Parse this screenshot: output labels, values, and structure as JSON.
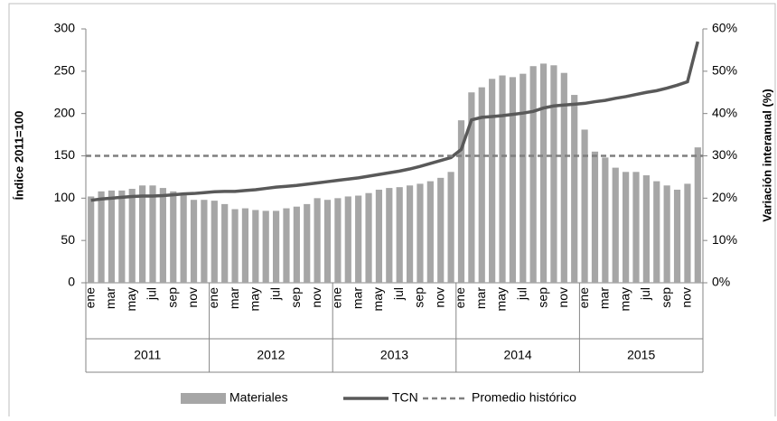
{
  "chart_data": {
    "type": "bar-line",
    "y_label": "Índice 2011=100",
    "y2_label": "Variación interanual (%)",
    "categories": [
      "ene",
      null,
      "mar",
      null,
      "may",
      null,
      "jul",
      null,
      "sep",
      null,
      "nov",
      null,
      "ene",
      null,
      "mar",
      null,
      "may",
      null,
      "jul",
      null,
      "sep",
      null,
      "nov",
      null,
      "ene",
      null,
      "mar",
      null,
      "may",
      null,
      "jul",
      null,
      "sep",
      null,
      "nov",
      null,
      "ene",
      null,
      "mar",
      null,
      "may",
      null,
      "jul",
      null,
      "sep",
      null,
      "nov",
      null,
      "ene",
      null,
      "mar",
      null,
      "may",
      null,
      "jul",
      null,
      "sep",
      null,
      "nov",
      null
    ],
    "years": [
      "2011",
      "2012",
      "2013",
      "2014",
      "2015"
    ],
    "ylim": [
      0,
      300
    ],
    "yticks": [
      0,
      50,
      100,
      150,
      200,
      250,
      300
    ],
    "y2lim": [
      0,
      60
    ],
    "y2ticks": [
      {
        "value": 0,
        "label": "0%"
      },
      {
        "value": 10,
        "label": "10%"
      },
      {
        "value": 20,
        "label": "20%"
      },
      {
        "value": 30,
        "label": "30%"
      },
      {
        "value": 40,
        "label": "40%"
      },
      {
        "value": 50,
        "label": "50%"
      },
      {
        "value": 60,
        "label": "60%"
      }
    ],
    "series": [
      {
        "name": "Materiales",
        "kind": "bar",
        "color": "#a6a6a6",
        "values": [
          102,
          108,
          109,
          109,
          111,
          115,
          115,
          112,
          108,
          105,
          98,
          98,
          97,
          93,
          87,
          88,
          86,
          85,
          85,
          88,
          90,
          93,
          100,
          98,
          100,
          102,
          103,
          106,
          110,
          112,
          113,
          115,
          117,
          120,
          124,
          131,
          192,
          225,
          231,
          241,
          245,
          243,
          247,
          256,
          259,
          257,
          248,
          222,
          181,
          155,
          148,
          136,
          131,
          131,
          127,
          120,
          115,
          110,
          117,
          160
        ]
      },
      {
        "name": "TCN",
        "kind": "line",
        "axis": "y2",
        "color": "#595959",
        "values": [
          19.5,
          19.8,
          20,
          20.2,
          20.4,
          20.5,
          20.5,
          20.6,
          20.8,
          21,
          21.1,
          21.3,
          21.5,
          21.6,
          21.6,
          21.8,
          22,
          22.3,
          22.6,
          22.8,
          23,
          23.3,
          23.6,
          23.9,
          24.2,
          24.5,
          24.8,
          25.2,
          25.6,
          26,
          26.4,
          26.9,
          27.5,
          28.2,
          28.9,
          29.6,
          31.5,
          38.5,
          39.1,
          39.3,
          39.5,
          39.8,
          40.1,
          40.5,
          41.3,
          41.8,
          42,
          42.2,
          42.4,
          42.8,
          43.1,
          43.6,
          44,
          44.5,
          45,
          45.4,
          46,
          46.7,
          47.5,
          57
        ]
      },
      {
        "name": "Promedio histórico",
        "kind": "reference",
        "axis": "y2",
        "color": "#7f7f7f",
        "value": 30
      }
    ]
  }
}
